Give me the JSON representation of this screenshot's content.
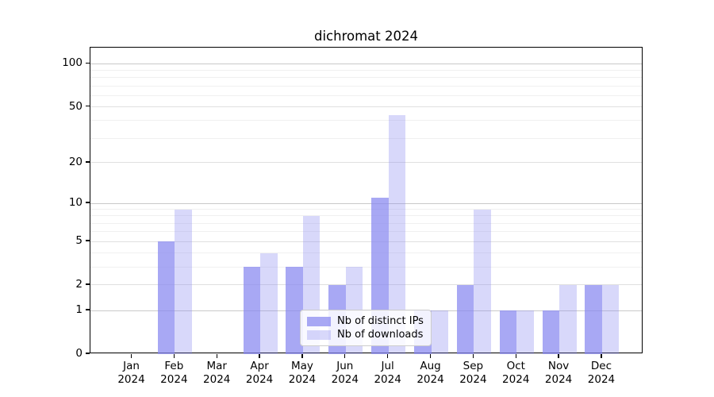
{
  "title": "dichromat 2024",
  "legend": {
    "items": [
      {
        "label": "Nb of distinct IPs"
      },
      {
        "label": "Nb of downloads"
      }
    ],
    "position": "lower center"
  },
  "colors": {
    "bar_base": "#8888F0",
    "grid_minor": "#f0f0f0",
    "grid_major": "#e0e0e0",
    "grid_decade": "#c9c9c9",
    "spine": "#000000",
    "text": "#000000",
    "legend_border": "#cccccc"
  },
  "chart_data": {
    "type": "bar",
    "title": "dichromat 2024",
    "y_scale": "log1p",
    "grid": true,
    "legend_position": "lower center",
    "year": "2024",
    "categories": [
      "Jan",
      "Feb",
      "Mar",
      "Apr",
      "May",
      "Jun",
      "Jul",
      "Aug",
      "Sep",
      "Oct",
      "Nov",
      "Dec"
    ],
    "series": [
      {
        "name": "Nb of distinct IPs",
        "alpha": 0.73,
        "values": [
          0,
          5,
          0,
          3,
          3,
          2,
          11,
          1,
          2,
          1,
          1,
          2
        ]
      },
      {
        "name": "Nb of downloads",
        "alpha": 0.33,
        "values": [
          0,
          9,
          0,
          4,
          8,
          3,
          44,
          1,
          9,
          1,
          2,
          2
        ]
      }
    ],
    "y_ticks": [
      0,
      1,
      2,
      5,
      10,
      20,
      50,
      100
    ],
    "y_gridlines_major": [
      1,
      2,
      5,
      10,
      20,
      50,
      100
    ],
    "y_gridlines_decade": [
      1,
      10,
      100
    ],
    "y_gridlines_minor": [
      3,
      4,
      6,
      7,
      8,
      9,
      30,
      40,
      60,
      70,
      80,
      90
    ],
    "ylim": [
      0,
      130
    ]
  }
}
